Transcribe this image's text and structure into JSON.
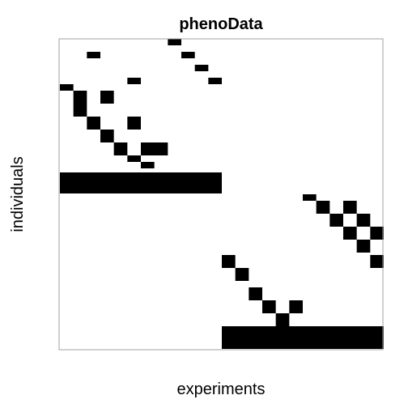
{
  "chart_data": {
    "type": "heatmap",
    "title": "phenoData",
    "xlabel": "experiments",
    "ylabel": "individuals",
    "grid": false,
    "legend": "none",
    "colors": {
      "filled": "#000000",
      "empty": "#ffffff",
      "frame": "#a0a0a0"
    },
    "n_columns": 24,
    "n_rows": 23,
    "cells": [
      {
        "row": 0,
        "cols": [
          8
        ]
      },
      {
        "row": 1,
        "cols": [
          2,
          9
        ]
      },
      {
        "row": 2,
        "cols": [
          10
        ]
      },
      {
        "row": 3,
        "cols": [
          5,
          11
        ]
      },
      {
        "row": 4,
        "cols": [
          0
        ]
      },
      {
        "row": 5,
        "cols": [
          1,
          3
        ]
      },
      {
        "row": 6,
        "cols": [
          1
        ]
      },
      {
        "row": 7,
        "cols": [
          2,
          5
        ]
      },
      {
        "row": 8,
        "cols": [
          3
        ]
      },
      {
        "row": 9,
        "cols": [
          4,
          6,
          7
        ]
      },
      {
        "row": 10,
        "cols": [
          5
        ]
      },
      {
        "row": 11,
        "cols": [
          6
        ]
      },
      {
        "row": 12,
        "cols": [
          0,
          1,
          2,
          3,
          4,
          5,
          6,
          7,
          8,
          9,
          10,
          11
        ]
      },
      {
        "row": 13,
        "cols": [
          18
        ]
      },
      {
        "row": 14,
        "cols": [
          19,
          21
        ]
      },
      {
        "row": 15,
        "cols": [
          20,
          22
        ]
      },
      {
        "row": 16,
        "cols": [
          21,
          23
        ]
      },
      {
        "row": 17,
        "cols": [
          22
        ]
      },
      {
        "row": 18,
        "cols": [
          12,
          23
        ]
      },
      {
        "row": 19,
        "cols": [
          13
        ]
      },
      {
        "row": 20,
        "cols": [
          14
        ]
      },
      {
        "row": 21,
        "cols": [
          15,
          17
        ]
      },
      {
        "row": 22,
        "cols": [
          16
        ]
      }
    ],
    "full_rows_bottom": [
      {
        "cols_from": 12,
        "cols_to": 23
      }
    ]
  }
}
